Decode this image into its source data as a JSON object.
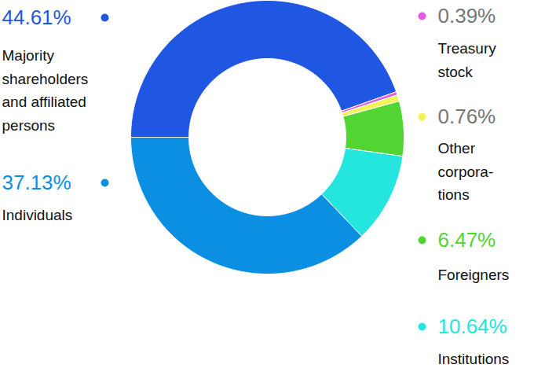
{
  "chart_data": {
    "type": "donut",
    "categories": [
      "Majority\nshareholders\nand affiliated\npersons",
      "Treasury\nstock",
      "Other\ncorpora-\ntions",
      "Foreigners",
      "Institutions",
      "Individuals"
    ],
    "values": [
      44.61,
      0.39,
      0.76,
      6.47,
      10.64,
      37.13
    ],
    "value_labels": [
      "44.61%",
      "0.39%",
      "0.76%",
      "6.47%",
      "10.64%",
      "37.13%"
    ],
    "colors": [
      "#1f57e3",
      "#e35de3",
      "#f2f25a",
      "#52d433",
      "#24e6de",
      "#0a8fe3"
    ],
    "data_labels": true
  }
}
